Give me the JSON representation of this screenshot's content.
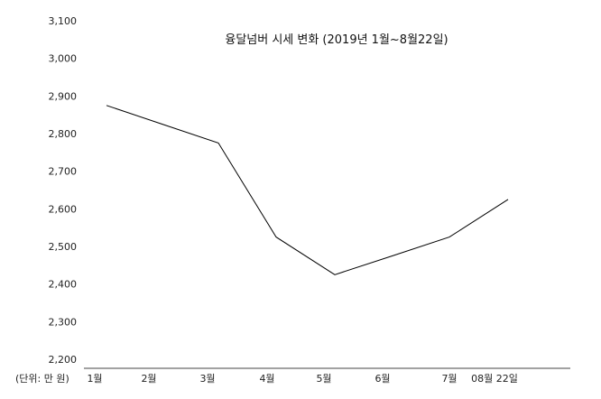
{
  "chart_data": {
    "type": "line",
    "title": "융달넘버 시세 변화 (2019년 1월~8월22일)",
    "unit_label": "(단위: 만 원)",
    "categories": [
      "1월",
      "2월",
      "3월",
      "4월",
      "5월",
      "6월",
      "7월",
      "08월 22일"
    ],
    "values": [
      2875,
      2825,
      2775,
      2525,
      2425,
      2475,
      2525,
      2625
    ],
    "y_ticks": [
      "2,200",
      "2,300",
      "2,400",
      "2,500",
      "2,600",
      "2,700",
      "2,800",
      "2,900",
      "3,000",
      "3,100"
    ],
    "ylim": [
      2200,
      3100
    ],
    "grid": false,
    "line_color": "#000000"
  }
}
